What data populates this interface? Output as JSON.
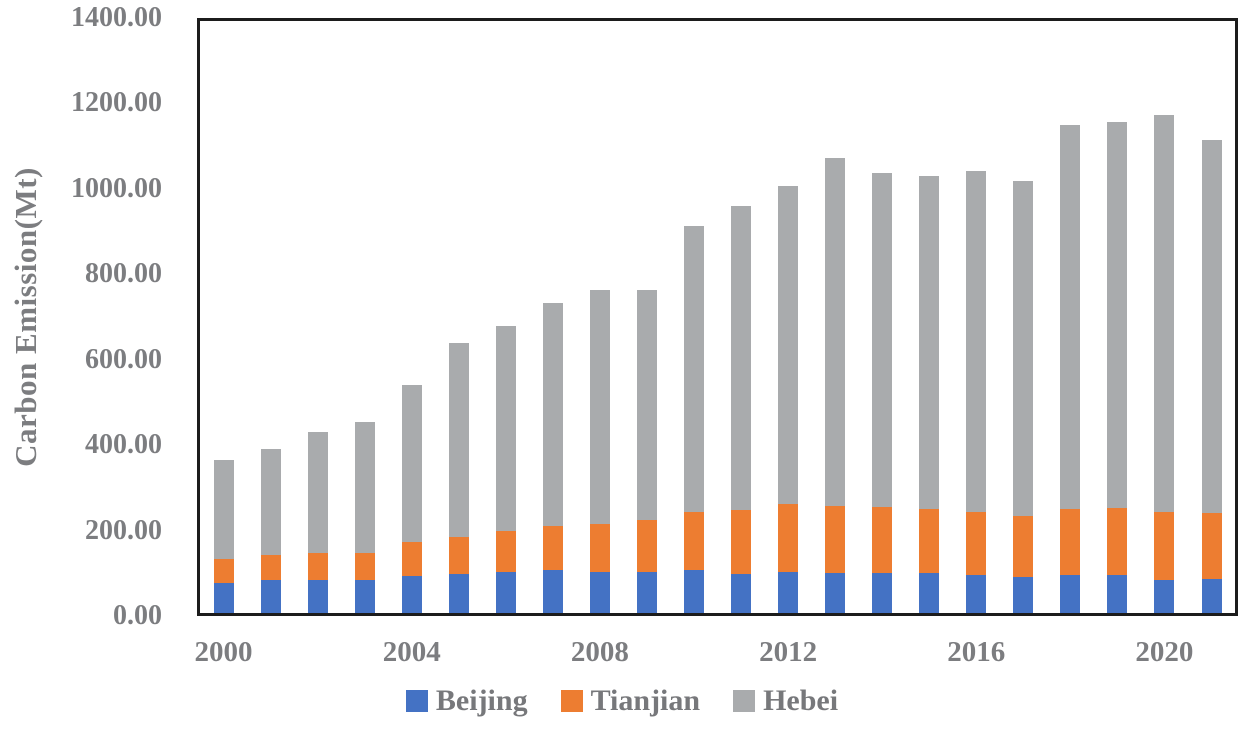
{
  "chart_data": {
    "type": "bar",
    "stacked": true,
    "title": "",
    "xlabel": "",
    "ylabel": "Carbon Emission(Mt)",
    "ylim": [
      0,
      1400
    ],
    "grid": false,
    "legend_position": "bottom",
    "y_tick_labels": [
      "1400.00",
      "1200.00",
      "1000.00",
      "800.00",
      "600.00",
      "400.00",
      "200.00",
      "0.00"
    ],
    "x_tick_labels": [
      "2000",
      "2004",
      "2008",
      "2012",
      "2016",
      "2020"
    ],
    "categories": [
      "2000",
      "2001",
      "2002",
      "2003",
      "2004",
      "2005",
      "2006",
      "2007",
      "2008",
      "2009",
      "2010",
      "2011",
      "2012",
      "2013",
      "2014",
      "2015",
      "2016",
      "2017",
      "2018",
      "2019",
      "2020",
      "2021"
    ],
    "series": [
      {
        "name": "Beijing",
        "color": "#4472C4",
        "values": [
          71,
          77,
          78,
          79,
          87,
          92,
          96,
          102,
          98,
          97,
          101,
          92,
          97,
          95,
          94,
          94,
          91,
          86,
          91,
          90,
          78,
          80
        ]
      },
      {
        "name": "Tianjian",
        "color": "#ED7D31",
        "values": [
          56,
          61,
          63,
          64,
          80,
          88,
          97,
          104,
          112,
          122,
          137,
          151,
          161,
          157,
          156,
          152,
          148,
          144,
          156,
          158,
          161,
          156
        ]
      },
      {
        "name": "Hebei",
        "color": "#A9ABAD",
        "values": [
          236,
          251,
          287,
          309,
          373,
          459,
          486,
          528,
          553,
          544,
          678,
          720,
          752,
          823,
          790,
          788,
          807,
          791,
          908,
          913,
          938,
          883
        ]
      }
    ]
  },
  "colors": {
    "axis_text": "#7C7D80",
    "legend_text": "#77787B",
    "frame": "#1C1C1C",
    "background": "#FFFFFF"
  }
}
